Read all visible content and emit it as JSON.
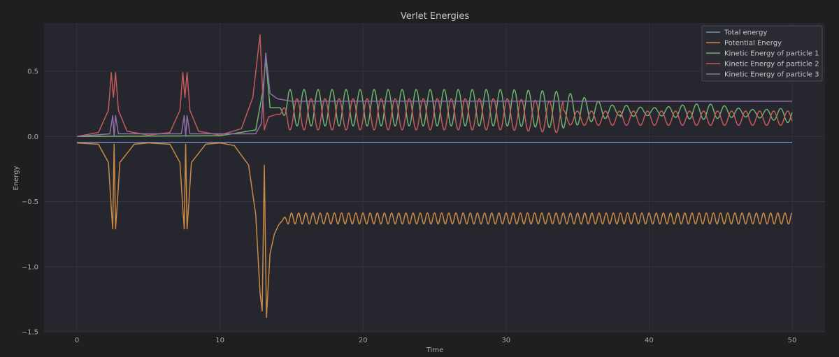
{
  "chart_data": {
    "type": "line",
    "title": "Verlet Energies",
    "xlabel": "Time",
    "ylabel": "Energy",
    "xlim": [
      -2.3,
      52.3
    ],
    "ylim": [
      -1.5,
      0.87
    ],
    "xticks": [
      0,
      10,
      20,
      30,
      40,
      50
    ],
    "yticks": [
      0.5,
      0.0,
      -0.5,
      -1.0,
      -1.5
    ],
    "ytick_labels": [
      "0.5",
      "0.0",
      "−0.5",
      "−1.0",
      "−1.5"
    ],
    "grid": true,
    "legend_position": "top-right",
    "series": [
      {
        "name": "Total energy",
        "color": "#6f8fb8",
        "points": [
          [
            0,
            -0.046
          ],
          [
            10,
            -0.046
          ],
          [
            20,
            -0.046
          ],
          [
            30,
            -0.046
          ],
          [
            40,
            -0.046
          ],
          [
            50,
            -0.046
          ]
        ]
      },
      {
        "name": "Potential Energy",
        "color": "#c98a45",
        "points": [
          [
            0,
            -0.05
          ],
          [
            1.5,
            -0.06
          ],
          [
            2.2,
            -0.2
          ],
          [
            2.4,
            -0.55
          ],
          [
            2.5,
            -0.71
          ],
          [
            2.6,
            -0.06
          ],
          [
            2.7,
            -0.71
          ],
          [
            2.8,
            -0.55
          ],
          [
            3.0,
            -0.2
          ],
          [
            4,
            -0.06
          ],
          [
            5,
            -0.05
          ],
          [
            6.5,
            -0.06
          ],
          [
            7.2,
            -0.2
          ],
          [
            7.4,
            -0.55
          ],
          [
            7.5,
            -0.71
          ],
          [
            7.6,
            -0.06
          ],
          [
            7.7,
            -0.71
          ],
          [
            7.8,
            -0.55
          ],
          [
            8.0,
            -0.2
          ],
          [
            9,
            -0.06
          ],
          [
            10,
            -0.05
          ],
          [
            11,
            -0.07
          ],
          [
            12,
            -0.22
          ],
          [
            12.5,
            -0.6
          ],
          [
            12.8,
            -1.2
          ],
          [
            12.95,
            -1.34
          ],
          [
            13.1,
            -0.22
          ],
          [
            13.25,
            -1.39
          ],
          [
            13.5,
            -0.9
          ],
          [
            13.8,
            -0.75
          ],
          [
            14.1,
            -0.68
          ],
          [
            14.4,
            -0.64
          ],
          [
            15,
            -0.63
          ],
          [
            20,
            -0.63
          ],
          [
            25,
            -0.63
          ],
          [
            30,
            -0.63
          ],
          [
            35,
            -0.63
          ],
          [
            40,
            -0.63
          ],
          [
            45,
            -0.63
          ],
          [
            50,
            -0.63
          ]
        ]
      },
      {
        "name": "Kinetic Energy of particle 1",
        "color": "#6fb36f",
        "points": [
          [
            0,
            0.0
          ],
          [
            10,
            0.005
          ],
          [
            12.5,
            0.05
          ],
          [
            13.0,
            0.35
          ],
          [
            13.2,
            0.6
          ],
          [
            13.5,
            0.22
          ],
          [
            14,
            0.22
          ],
          [
            15,
            0.22
          ],
          [
            20,
            0.22
          ],
          [
            25,
            0.22
          ],
          [
            30,
            0.22
          ],
          [
            35,
            0.2
          ],
          [
            40,
            0.19
          ],
          [
            45,
            0.19
          ],
          [
            50,
            0.16
          ]
        ]
      },
      {
        "name": "Kinetic Energy of particle 2",
        "color": "#c45b5b",
        "points": [
          [
            0,
            0.0
          ],
          [
            1.5,
            0.03
          ],
          [
            2.2,
            0.2
          ],
          [
            2.4,
            0.49
          ],
          [
            2.55,
            0.3
          ],
          [
            2.7,
            0.49
          ],
          [
            2.9,
            0.2
          ],
          [
            3.5,
            0.04
          ],
          [
            5,
            0.01
          ],
          [
            6.5,
            0.03
          ],
          [
            7.2,
            0.2
          ],
          [
            7.4,
            0.49
          ],
          [
            7.55,
            0.3
          ],
          [
            7.7,
            0.49
          ],
          [
            7.9,
            0.2
          ],
          [
            8.5,
            0.04
          ],
          [
            10,
            0.01
          ],
          [
            11.5,
            0.06
          ],
          [
            12.3,
            0.3
          ],
          [
            12.8,
            0.78
          ],
          [
            13.1,
            0.05
          ],
          [
            13.4,
            0.15
          ],
          [
            14,
            0.17
          ],
          [
            15,
            0.17
          ],
          [
            20,
            0.17
          ],
          [
            25,
            0.17
          ],
          [
            30,
            0.17
          ],
          [
            35,
            0.14
          ],
          [
            40,
            0.14
          ],
          [
            45,
            0.14
          ],
          [
            50,
            0.14
          ]
        ]
      },
      {
        "name": "Kinetic Energy of particle 3",
        "color": "#8e6fa6",
        "points": [
          [
            0,
            0.0
          ],
          [
            2.3,
            0.02
          ],
          [
            2.5,
            0.16
          ],
          [
            2.6,
            0.0
          ],
          [
            2.7,
            0.16
          ],
          [
            2.9,
            0.02
          ],
          [
            7.3,
            0.02
          ],
          [
            7.5,
            0.16
          ],
          [
            7.6,
            0.0
          ],
          [
            7.7,
            0.16
          ],
          [
            7.9,
            0.02
          ],
          [
            12.5,
            0.02
          ],
          [
            12.9,
            0.1
          ],
          [
            13.2,
            0.64
          ],
          [
            13.5,
            0.33
          ],
          [
            14,
            0.29
          ],
          [
            15,
            0.27
          ],
          [
            20,
            0.27
          ],
          [
            30,
            0.27
          ],
          [
            40,
            0.27
          ],
          [
            50,
            0.27
          ]
        ]
      }
    ]
  }
}
